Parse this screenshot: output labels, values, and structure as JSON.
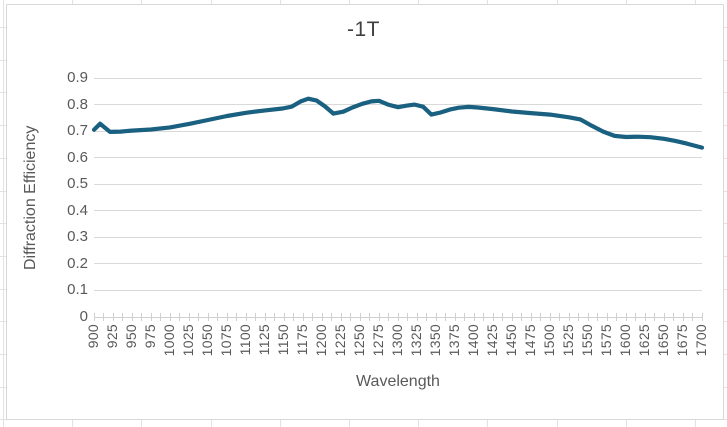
{
  "chart": {
    "title": "-1T",
    "x_axis_title": "Wavelength",
    "y_axis_title": "Diffraction Efficiency",
    "colors": {
      "line": "#1a6080",
      "gridline": "#d9d9d9",
      "axis": "#d0d0d0",
      "tick_label": "#595959",
      "axis_title": "#595959",
      "title": "#404040",
      "chart_border": "#d7d7d7",
      "cell_gridline": "#e2e2e2"
    },
    "y_tick_labels": [
      "0",
      "0.1",
      "0.2",
      "0.3",
      "0.4",
      "0.5",
      "0.6",
      "0.7",
      "0.8",
      "0.9"
    ],
    "x_tick_labels": [
      "900",
      "925",
      "950",
      "975",
      "1000",
      "1025",
      "1050",
      "1075",
      "1100",
      "1125",
      "1150",
      "1175",
      "1200",
      "1225",
      "1250",
      "1275",
      "1300",
      "1325",
      "1350",
      "1375",
      "1400",
      "1425",
      "1450",
      "1475",
      "1500",
      "1525",
      "1550",
      "1575",
      "1600",
      "1625",
      "1650",
      "1675",
      "1700"
    ]
  },
  "chart_data": {
    "type": "line",
    "title": "-1T",
    "xlabel": "Wavelength",
    "ylabel": "Diffraction Efficiency",
    "xlim": [
      900,
      1700
    ],
    "ylim": [
      0,
      0.9
    ],
    "y_ticks": [
      0,
      0.1,
      0.2,
      0.3,
      0.4,
      0.5,
      0.6,
      0.7,
      0.8,
      0.9
    ],
    "x_ticks": [
      900,
      925,
      950,
      975,
      1000,
      1025,
      1050,
      1075,
      1100,
      1125,
      1150,
      1175,
      1200,
      1225,
      1250,
      1275,
      1300,
      1325,
      1350,
      1375,
      1400,
      1425,
      1450,
      1475,
      1500,
      1525,
      1550,
      1575,
      1600,
      1625,
      1650,
      1675,
      1700
    ],
    "grid": "horizontal",
    "legend": "none",
    "series": [
      {
        "name": "Diffraction Efficiency",
        "color": "#1a6080",
        "x": [
          900,
          908,
          921,
          935,
          950,
          975,
          1000,
          1025,
          1050,
          1075,
          1100,
          1125,
          1148,
          1160,
          1172,
          1182,
          1193,
          1204,
          1215,
          1228,
          1240,
          1253,
          1265,
          1275,
          1287,
          1300,
          1312,
          1322,
          1333,
          1344,
          1356,
          1368,
          1380,
          1393,
          1405,
          1425,
          1450,
          1475,
          1500,
          1525,
          1540,
          1555,
          1570,
          1585,
          1600,
          1615,
          1632,
          1650,
          1665,
          1680,
          1700
        ],
        "y": [
          0.705,
          0.728,
          0.697,
          0.698,
          0.702,
          0.706,
          0.714,
          0.727,
          0.742,
          0.757,
          0.769,
          0.778,
          0.785,
          0.792,
          0.812,
          0.822,
          0.815,
          0.793,
          0.766,
          0.773,
          0.789,
          0.803,
          0.812,
          0.814,
          0.8,
          0.79,
          0.796,
          0.8,
          0.792,
          0.762,
          0.77,
          0.781,
          0.788,
          0.791,
          0.789,
          0.783,
          0.774,
          0.768,
          0.762,
          0.752,
          0.744,
          0.72,
          0.698,
          0.682,
          0.678,
          0.679,
          0.677,
          0.671,
          0.663,
          0.653,
          0.638
        ]
      }
    ]
  }
}
